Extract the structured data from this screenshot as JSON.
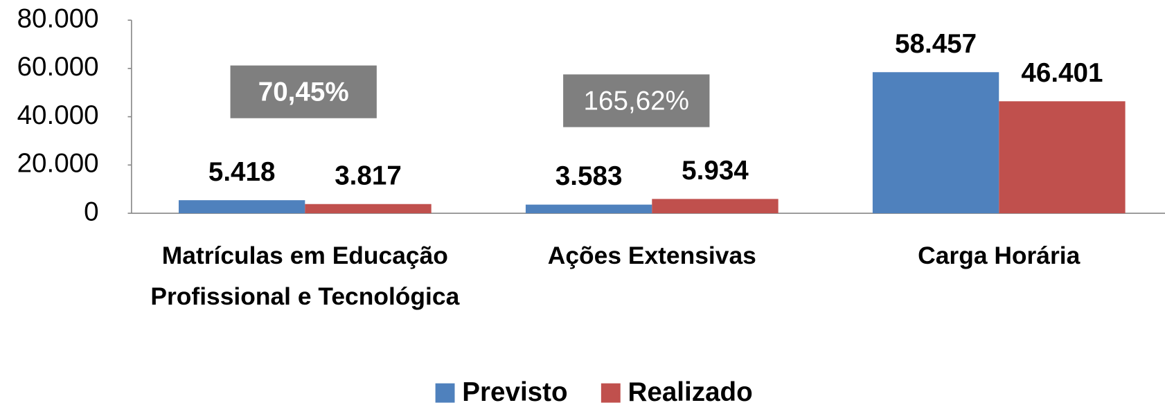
{
  "chart_data": {
    "type": "bar",
    "categories": [
      "Matrículas em Educação Profissional e Tecnológica",
      "Ações Extensivas",
      "Carga Horária"
    ],
    "series": [
      {
        "name": "Previsto",
        "color": "#4f81bd",
        "values": [
          5418,
          3583,
          58457
        ],
        "value_labels": [
          "5.418",
          "3.583",
          "58.457"
        ]
      },
      {
        "name": "Realizado",
        "color": "#c0504d",
        "values": [
          3817,
          5934,
          46401
        ],
        "value_labels": [
          "3.817",
          "5.934",
          "46.401"
        ]
      }
    ],
    "annotations": [
      "70,45%",
      "165,62%"
    ],
    "ylim": [
      0,
      80000
    ],
    "yticks": [
      0,
      {
        "value": 20000,
        "label": "20.000"
      },
      {
        "value": 40000,
        "label": "40.000"
      },
      {
        "value": 60000,
        "label": "60.000"
      },
      {
        "value": 80000,
        "label": "80.000"
      }
    ],
    "grid": false,
    "legend": "bottom"
  }
}
